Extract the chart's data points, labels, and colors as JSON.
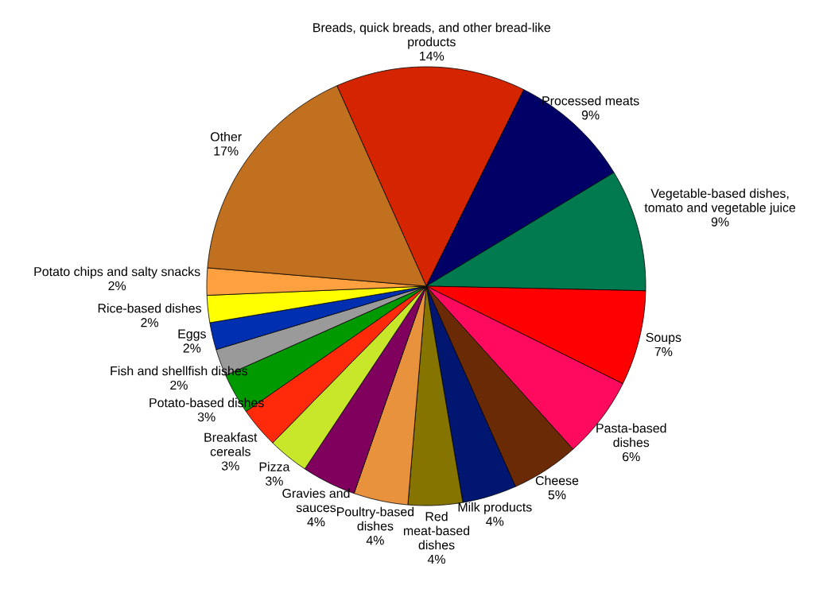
{
  "chart_data": {
    "type": "pie",
    "categories": [
      "Breads, quick breads, and other bread-like products",
      "Processed meats",
      "Vegetable-based dishes, tomato and vegetable juice",
      "Soups",
      "Pasta-based dishes",
      "Cheese",
      "Milk products",
      "Red meat-based dishes",
      "Poultry-based dishes",
      "Gravies and sauces",
      "Pizza",
      "Breakfast cereals",
      "Potato-based dishes",
      "Fish and shellfish dishes",
      "Eggs",
      "Rice-based dishes",
      "Potato chips and salty snacks",
      "Other"
    ],
    "values": [
      14,
      9,
      9,
      7,
      6,
      5,
      4,
      4,
      4,
      4,
      3,
      3,
      3,
      2,
      2,
      2,
      2,
      17
    ],
    "value_labels": [
      "14%",
      "9%",
      "9%",
      "7%",
      "6%",
      "5%",
      "4%",
      "4%",
      "4%",
      "4%",
      "3%",
      "3%",
      "3%",
      "2%",
      "2%",
      "2%",
      "2%",
      "17%"
    ],
    "colors": [
      "#d42400",
      "#000066",
      "#007a4e",
      "#ff0000",
      "#ff0a5e",
      "#6b2a06",
      "#001670",
      "#857400",
      "#e8923e",
      "#80005e",
      "#c8e62a",
      "#ff2a0a",
      "#009a00",
      "#9a9a9a",
      "#0030b0",
      "#ffff00",
      "#ffa040",
      "#c0701e"
    ]
  }
}
